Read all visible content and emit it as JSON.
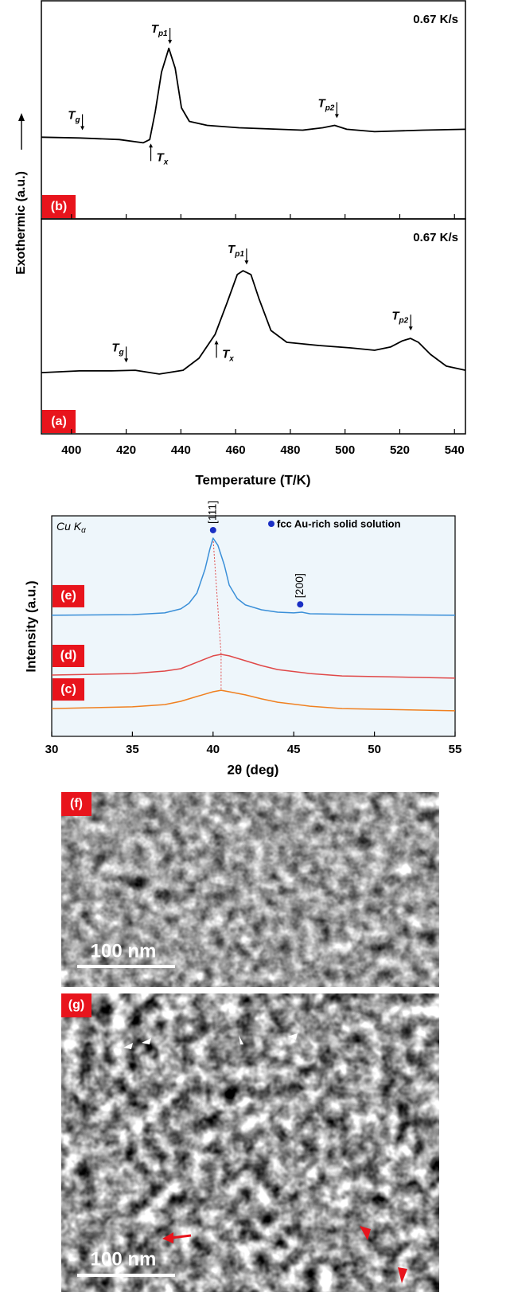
{
  "chart_data": [
    {
      "type": "line",
      "y_label": "Exothermic (a.u.)",
      "x_label": "Temperature (T/K)",
      "xlim": [
        389,
        544
      ],
      "xticks": [
        400,
        420,
        440,
        460,
        480,
        500,
        520,
        540
      ],
      "panels": [
        {
          "label": "(b)",
          "rate": "0.67 K/s",
          "ylim": [
            0,
            100
          ],
          "color": "#000000",
          "x": [
            388.9,
            402.9,
            417.5,
            426.2,
            428.6,
            430.6,
            432.9,
            435.6,
            437.9,
            440.2,
            443.1,
            449.6,
            461.2,
            484.5,
            491.8,
            496.2,
            500.6,
            510.8,
            528.3,
            544
          ],
          "values": [
            37.5,
            37.1,
            36.4,
            34.9,
            36.4,
            49.1,
            67.3,
            78.2,
            69.1,
            50.9,
            44.7,
            42.9,
            41.8,
            40.7,
            41.8,
            42.9,
            41.1,
            40,
            40.7,
            41.1
          ],
          "annotations": [
            {
              "symbol": "T",
              "sub": "g",
              "at": 404
            },
            {
              "symbol": "T",
              "sub": "x",
              "at": 429
            },
            {
              "symbol": "T",
              "sub": "p1",
              "at": 436
            },
            {
              "symbol": "T",
              "sub": "p2",
              "at": 497
            }
          ]
        },
        {
          "label": "(a)",
          "rate": "0.67 K/s",
          "ylim": [
            0,
            100
          ],
          "color": "#000000",
          "x": [
            388.9,
            402.9,
            414.6,
            423.3,
            432.1,
            440.8,
            446.6,
            452.5,
            456.9,
            460.6,
            462.7,
            465.6,
            468.5,
            472.9,
            478.7,
            490.4,
            502,
            510.8,
            516.6,
            521,
            523.9,
            526.8,
            531.2,
            537,
            544
          ],
          "values": [
            28.5,
            29.3,
            29.3,
            29.6,
            27.8,
            29.6,
            35.2,
            46.3,
            61.1,
            74.1,
            75.9,
            74.1,
            63,
            48.1,
            42.6,
            41.1,
            40,
            38.9,
            40.4,
            43.3,
            44.4,
            42.6,
            37,
            31.5,
            29.6
          ],
          "annotations": [
            {
              "symbol": "T",
              "sub": "g",
              "at": 420
            },
            {
              "symbol": "T",
              "sub": "x",
              "at": 453
            },
            {
              "symbol": "T",
              "sub": "p1",
              "at": 464
            },
            {
              "symbol": "T",
              "sub": "p2",
              "at": 524
            }
          ]
        }
      ]
    },
    {
      "type": "line",
      "source": "Cu K",
      "source_sub": "α",
      "legend": "fcc Au-rich solid solution",
      "y_label": "Intensity (a.u.)",
      "x_label": "2θ (deg)",
      "xlim": [
        30,
        55
      ],
      "xticks": [
        30,
        35,
        40,
        45,
        50,
        55
      ],
      "ylim": [
        0,
        100
      ],
      "background": "#eef6fb",
      "peak_color": "#1a2fc4",
      "guide_color": "#e05050",
      "series": [
        {
          "name": "(e)",
          "color": "#3a8fd8",
          "x": [
            30,
            35,
            37,
            38,
            38.5,
            39,
            39.5,
            39.8,
            40,
            40.3,
            40.7,
            41,
            41.5,
            42,
            43,
            44,
            45,
            45.5,
            46,
            50,
            55
          ],
          "values": [
            54.9,
            55.2,
            56,
            57.8,
            60.3,
            65,
            75.8,
            84.8,
            89.9,
            86.6,
            77.6,
            68.6,
            62.5,
            59.6,
            57.4,
            56.3,
            56,
            56.3,
            55.6,
            55.2,
            54.9
          ]
        },
        {
          "name": "(d)",
          "color": "#e04848",
          "x": [
            30,
            35,
            37,
            38,
            39,
            40,
            40.5,
            41,
            42,
            43,
            44,
            46,
            48,
            55
          ],
          "values": [
            27.8,
            28.5,
            29.6,
            30.7,
            33.6,
            36.5,
            37.2,
            36.5,
            34.3,
            32.1,
            30.3,
            28.5,
            27.4,
            26.4
          ]
        },
        {
          "name": "(c)",
          "color": "#f08020",
          "x": [
            30,
            35,
            37,
            38,
            39,
            40,
            40.5,
            41,
            42,
            43,
            44,
            46,
            48,
            55
          ],
          "values": [
            12.6,
            13.4,
            14.4,
            15.9,
            18.1,
            20.2,
            20.9,
            20.2,
            18.8,
            17,
            15.5,
            13.7,
            12.6,
            11.6
          ]
        }
      ],
      "peaks": [
        {
          "label": "[111]",
          "x": 40
        },
        {
          "label": "[200]",
          "x": 45.4
        }
      ]
    }
  ],
  "images": [
    {
      "label": "(f)",
      "scale_bar": "100 nm"
    },
    {
      "label": "(g)",
      "scale_bar": "100 nm"
    }
  ]
}
